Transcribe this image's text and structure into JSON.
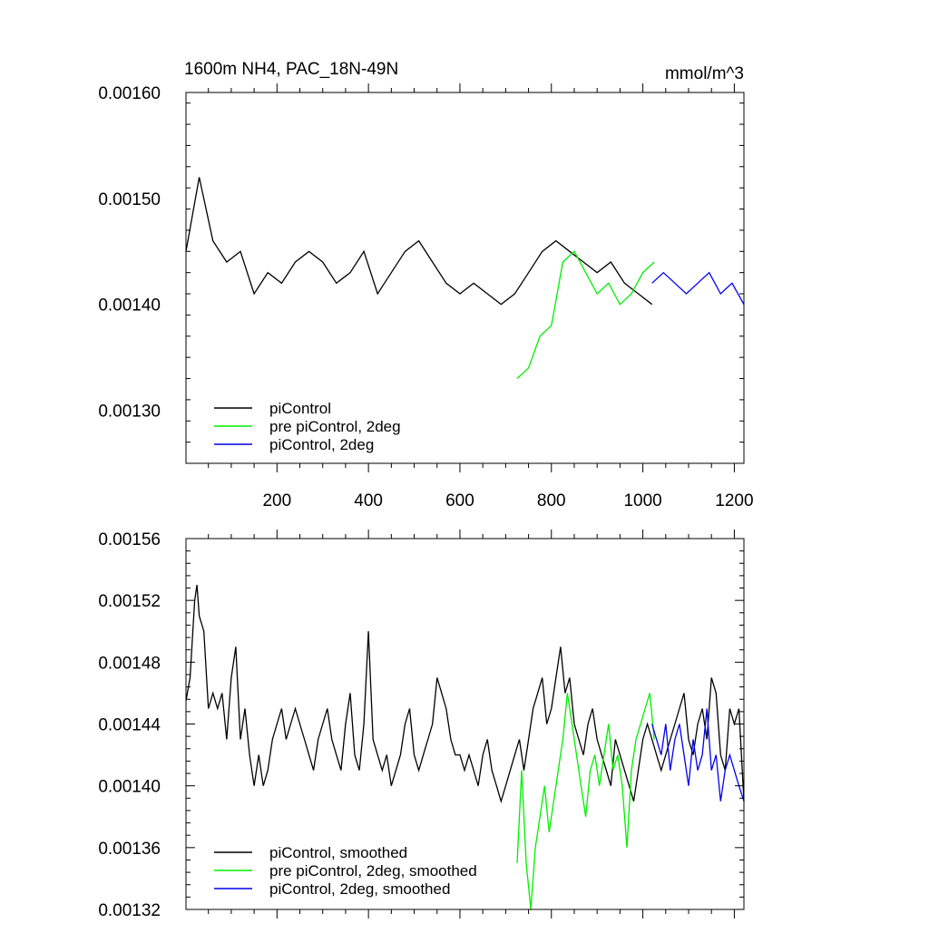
{
  "figure": {
    "title_left": "1600m NH4, PAC_18N-49N",
    "title_right": "mmol/m^3"
  },
  "chart_data": [
    {
      "type": "line",
      "title": "1600m NH4, PAC_18N-49N",
      "units": "mmol/m^3",
      "xlim": [
        1,
        1221
      ],
      "ylim": [
        0.00125,
        0.0016
      ],
      "x_ticks": [
        200,
        400,
        600,
        800,
        1000,
        1200
      ],
      "x_tick_labels": [
        "200",
        "400",
        "600",
        "800",
        "1000",
        "1200"
      ],
      "y_ticks": [
        0.0013,
        0.0014,
        0.0015,
        0.0016
      ],
      "y_tick_labels": [
        "0.00130",
        "0.00140",
        "0.00150",
        "0.00160"
      ],
      "legend_position": "bottom-left",
      "series": [
        {
          "name": "piControl",
          "color": "#000000",
          "x": [
            1,
            30,
            60,
            90,
            120,
            150,
            180,
            210,
            240,
            270,
            300,
            330,
            360,
            390,
            420,
            450,
            480,
            510,
            540,
            570,
            600,
            630,
            660,
            690,
            720,
            750,
            780,
            810,
            840,
            870,
            900,
            930,
            960,
            990,
            1020
          ],
          "y": [
            0.00145,
            0.00152,
            0.00146,
            0.00144,
            0.00145,
            0.00141,
            0.00143,
            0.00142,
            0.00144,
            0.00145,
            0.00144,
            0.00142,
            0.00143,
            0.00145,
            0.00141,
            0.00143,
            0.00145,
            0.00146,
            0.00144,
            0.00142,
            0.00141,
            0.00142,
            0.00141,
            0.0014,
            0.00141,
            0.00143,
            0.00145,
            0.00146,
            0.00145,
            0.00144,
            0.00143,
            0.00144,
            0.00142,
            0.00141,
            0.0014
          ]
        },
        {
          "name": "pre piControl, 2deg",
          "color": "#00ee00",
          "x": [
            725,
            750,
            775,
            800,
            825,
            850,
            875,
            900,
            925,
            950,
            975,
            1000,
            1025
          ],
          "y": [
            0.00133,
            0.00134,
            0.00137,
            0.00138,
            0.00144,
            0.00145,
            0.00143,
            0.00141,
            0.00142,
            0.0014,
            0.00141,
            0.00143,
            0.00144
          ]
        },
        {
          "name": "piControl, 2deg",
          "color": "#0000ee",
          "x": [
            1020,
            1045,
            1070,
            1095,
            1120,
            1145,
            1170,
            1195,
            1221
          ],
          "y": [
            0.00142,
            0.00143,
            0.00142,
            0.00141,
            0.00142,
            0.00143,
            0.00141,
            0.00142,
            0.0014
          ]
        }
      ]
    },
    {
      "type": "line",
      "xlim": [
        1,
        1221
      ],
      "ylim": [
        0.00132,
        0.00156
      ],
      "x_ticks": [
        200,
        400,
        600,
        800,
        1000,
        1200
      ],
      "x_tick_labels": [],
      "y_ticks": [
        0.00132,
        0.00136,
        0.0014,
        0.00144,
        0.00148,
        0.00152,
        0.00156
      ],
      "y_tick_labels": [
        "0.00132",
        "0.00136",
        "0.00140",
        "0.00144",
        "0.00148",
        "0.00152",
        "0.00156"
      ],
      "legend_position": "bottom-left",
      "series": [
        {
          "name": "piControl, smoothed",
          "color": "#000000",
          "x": [
            1,
            10,
            20,
            25,
            30,
            40,
            50,
            60,
            70,
            80,
            90,
            100,
            110,
            120,
            130,
            140,
            150,
            160,
            170,
            180,
            190,
            200,
            210,
            220,
            230,
            240,
            250,
            260,
            270,
            280,
            290,
            300,
            310,
            320,
            330,
            340,
            350,
            360,
            370,
            380,
            390,
            400,
            410,
            420,
            430,
            440,
            450,
            460,
            470,
            480,
            490,
            500,
            510,
            520,
            530,
            540,
            550,
            560,
            570,
            580,
            590,
            600,
            610,
            620,
            630,
            640,
            650,
            660,
            670,
            680,
            690,
            700,
            710,
            720,
            730,
            740,
            750,
            760,
            770,
            780,
            790,
            800,
            810,
            820,
            830,
            840,
            850,
            860,
            870,
            880,
            890,
            900,
            910,
            920,
            930,
            940,
            950,
            960,
            970,
            980,
            990,
            1000,
            1010,
            1020,
            1030,
            1040,
            1050,
            1060,
            1070,
            1080,
            1090,
            1100,
            1110,
            1120,
            1130,
            1140,
            1150,
            1160,
            1170,
            1180,
            1190,
            1200,
            1210,
            1221
          ],
          "y": [
            0.001455,
            0.00147,
            0.00152,
            0.00153,
            0.00151,
            0.0015,
            0.00145,
            0.00146,
            0.00145,
            0.00146,
            0.00143,
            0.00147,
            0.00149,
            0.00143,
            0.00145,
            0.00142,
            0.0014,
            0.00142,
            0.0014,
            0.00141,
            0.00143,
            0.00144,
            0.00145,
            0.00143,
            0.00144,
            0.00145,
            0.00144,
            0.00143,
            0.00142,
            0.00141,
            0.00143,
            0.00144,
            0.00145,
            0.00143,
            0.00142,
            0.00141,
            0.00144,
            0.00146,
            0.00142,
            0.00141,
            0.00144,
            0.0015,
            0.00143,
            0.00142,
            0.00141,
            0.00142,
            0.0014,
            0.00141,
            0.00142,
            0.00144,
            0.00145,
            0.00142,
            0.00141,
            0.00142,
            0.00143,
            0.00144,
            0.00147,
            0.00146,
            0.00145,
            0.00143,
            0.00142,
            0.00142,
            0.00141,
            0.00142,
            0.00141,
            0.0014,
            0.00142,
            0.00143,
            0.00141,
            0.0014,
            0.00139,
            0.0014,
            0.00141,
            0.00142,
            0.00143,
            0.00141,
            0.00143,
            0.00145,
            0.00146,
            0.00147,
            0.00144,
            0.00145,
            0.00147,
            0.00149,
            0.00146,
            0.00147,
            0.00144,
            0.00143,
            0.00142,
            0.00144,
            0.00145,
            0.00143,
            0.00142,
            0.00141,
            0.0014,
            0.00143,
            0.00142,
            0.00141,
            0.0014,
            0.00139,
            0.00141,
            0.00143,
            0.00144,
            0.00143,
            0.00142,
            0.00141,
            0.00142,
            0.00143,
            0.00144,
            0.00145,
            0.00146,
            0.00143,
            0.00142,
            0.00144,
            0.00145,
            0.00143,
            0.00147,
            0.00146,
            0.00142,
            0.00141,
            0.00145,
            0.00144,
            0.00145,
            0.00139
          ]
        },
        {
          "name": "pre piControl, 2deg, smoothed",
          "color": "#00ee00",
          "x": [
            725,
            735,
            745,
            755,
            765,
            775,
            785,
            795,
            805,
            815,
            825,
            835,
            845,
            855,
            865,
            875,
            885,
            895,
            905,
            915,
            925,
            935,
            945,
            955,
            965,
            975,
            985,
            995,
            1005,
            1015,
            1025
          ],
          "y": [
            0.00135,
            0.00141,
            0.00135,
            0.00132,
            0.00136,
            0.00138,
            0.0014,
            0.00137,
            0.00139,
            0.00141,
            0.00143,
            0.00146,
            0.00144,
            0.00142,
            0.0014,
            0.00138,
            0.00141,
            0.00142,
            0.0014,
            0.00142,
            0.00144,
            0.00141,
            0.00142,
            0.0014,
            0.00136,
            0.00141,
            0.00143,
            0.00144,
            0.00145,
            0.00146,
            0.00143
          ]
        },
        {
          "name": "piControl, 2deg, smoothed",
          "color": "#0000ee",
          "x": [
            1020,
            1030,
            1040,
            1050,
            1060,
            1070,
            1080,
            1090,
            1100,
            1110,
            1120,
            1130,
            1140,
            1150,
            1160,
            1170,
            1180,
            1190,
            1200,
            1210,
            1221
          ],
          "y": [
            0.00144,
            0.00143,
            0.00142,
            0.00144,
            0.00141,
            0.00143,
            0.00144,
            0.00142,
            0.0014,
            0.00143,
            0.00141,
            0.00142,
            0.00145,
            0.00141,
            0.00142,
            0.00139,
            0.00141,
            0.00142,
            0.00141,
            0.0014,
            0.00139
          ]
        }
      ]
    }
  ]
}
